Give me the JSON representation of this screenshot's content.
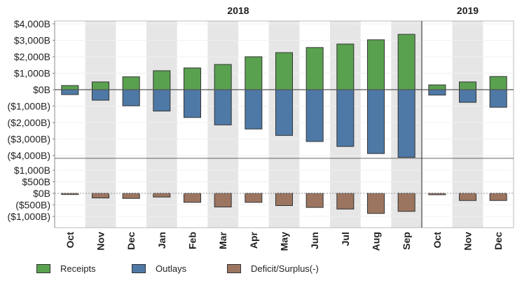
{
  "chart_data": {
    "type": "bar",
    "layout": "two stacked panels, diverging bars",
    "years": [
      {
        "label": "2018",
        "months": 12
      },
      {
        "label": "2019",
        "months": 3
      }
    ],
    "categories": [
      "Oct",
      "Nov",
      "Dec",
      "Jan",
      "Feb",
      "Mar",
      "Apr",
      "May",
      "Jun",
      "Jul",
      "Aug",
      "Sep",
      "Oct",
      "Nov",
      "Dec"
    ],
    "top_panel": {
      "ylim": [
        -4200,
        4200
      ],
      "ticks": [
        4000,
        3000,
        2000,
        1000,
        0,
        -1000,
        -2000,
        -3000,
        -4000
      ],
      "tick_labels": [
        "$4,000B",
        "$3,000B",
        "$2,000B",
        "$1,000B",
        "$0B",
        "($1,000B)",
        "($2,000B)",
        "($3,000B)",
        "($4,000B)"
      ],
      "series": [
        {
          "name": "Receipts",
          "color": "#59a14f",
          "values": [
            250,
            470,
            780,
            1150,
            1320,
            1530,
            2000,
            2250,
            2560,
            2770,
            3030,
            3360,
            290,
            470,
            800
          ]
        },
        {
          "name": "Outlays",
          "color": "#4e79a7",
          "values": [
            -300,
            -640,
            -980,
            -1300,
            -1690,
            -2140,
            -2390,
            -2780,
            -3150,
            -3450,
            -3880,
            -4110,
            -330,
            -770,
            -1070
          ]
        }
      ]
    },
    "bottom_panel": {
      "ylim": [
        -1400,
        1400
      ],
      "ticks": [
        1000,
        500,
        0,
        -500,
        -1000
      ],
      "tick_labels": [
        "$1,000B",
        "$500B",
        "$0B",
        "($500B)",
        "($1,000B)"
      ],
      "series": [
        {
          "name": "Deficit/Surplus(-)",
          "color": "#9c7560",
          "values": [
            -50,
            -200,
            -220,
            -160,
            -390,
            -590,
            -390,
            -530,
            -610,
            -680,
            -870,
            -780,
            -60,
            -310,
            -310
          ]
        }
      ]
    },
    "grid": true,
    "legend": "bottom"
  }
}
